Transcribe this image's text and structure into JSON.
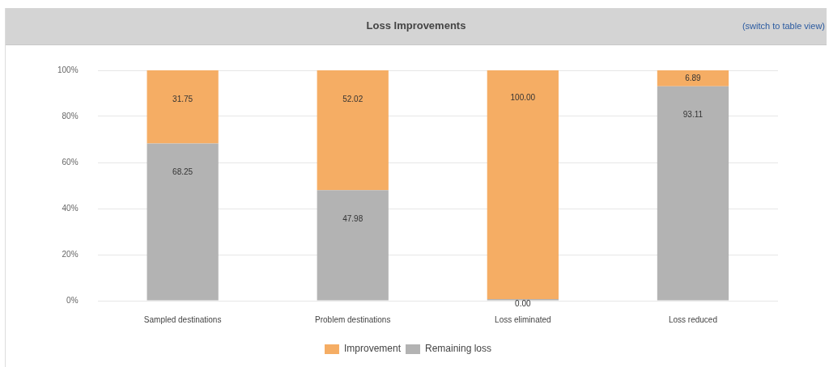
{
  "chart_data": {
    "type": "bar",
    "title": "Loss Improvements",
    "annotations": [
      "(switch to table view)"
    ],
    "categories": [
      "Sampled destinations",
      "Problem destinations",
      "Loss eliminated",
      "Loss reduced"
    ],
    "stacked": true,
    "series": [
      {
        "name": "Remaining loss",
        "color": "#b3b3b3",
        "values": [
          68.25,
          47.98,
          0,
          93.11
        ],
        "value_labels": [
          "68.25",
          "47.98",
          "0.00",
          "93.11"
        ]
      },
      {
        "name": "Improvement",
        "color": "#f5ad64",
        "values": [
          31.75,
          52.02,
          100,
          6.89
        ],
        "value_labels": [
          "31.75",
          "52.02",
          "100.00",
          "6.89"
        ]
      }
    ],
    "ylim": [
      0,
      100
    ],
    "yticks": [
      {
        "value": 0,
        "label": "0%"
      },
      {
        "value": 20,
        "label": "20%"
      },
      {
        "value": 40,
        "label": "40%"
      },
      {
        "value": 60,
        "label": "60%"
      },
      {
        "value": 80,
        "label": "80%"
      },
      {
        "value": 100,
        "label": "100%"
      }
    ],
    "grid": "y",
    "legend": "bottom"
  }
}
